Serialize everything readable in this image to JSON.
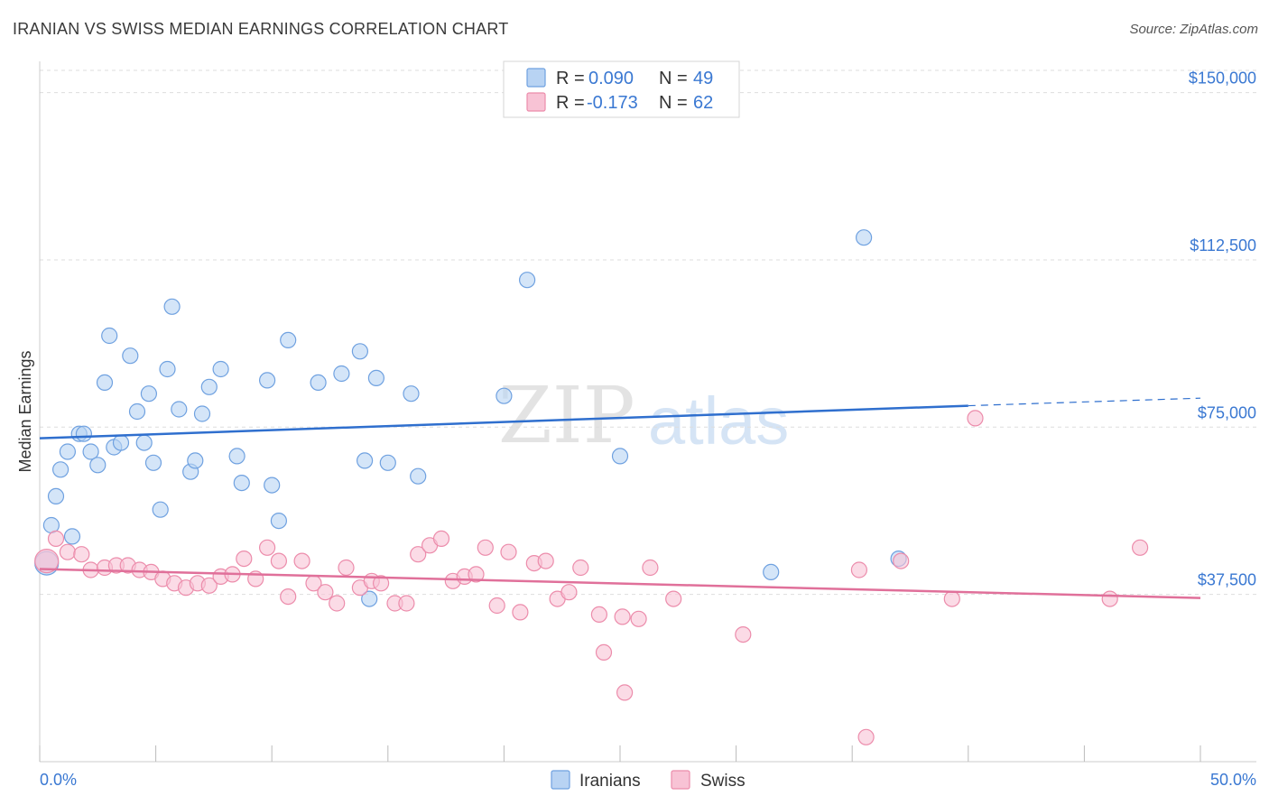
{
  "title": "IRANIAN VS SWISS MEDIAN EARNINGS CORRELATION CHART",
  "source": "Source: ZipAtlas.com",
  "colors": {
    "iranian_fill": "#b8d3f3",
    "iranian_stroke": "#6fa1e0",
    "iranian_line": "#2f6fce",
    "swiss_fill": "#f8c3d5",
    "swiss_stroke": "#ec8cab",
    "swiss_line": "#e0709a",
    "axis_label": "#3a78d2",
    "grid": "#dddddd"
  },
  "legend": {
    "rows": [
      {
        "r_label": "R = ",
        "r_value": "0.090",
        "n_label": "N = ",
        "n_value": "49"
      },
      {
        "r_label": "R = ",
        "r_value": "-0.173",
        "n_label": "N = ",
        "n_value": "62"
      }
    ]
  },
  "bottom_legend": [
    "Iranians",
    "Swiss"
  ],
  "watermark": {
    "zip": "ZIP",
    "atlas": "atlas"
  },
  "chart_data": {
    "type": "scatter",
    "title": "IRANIAN VS SWISS MEDIAN EARNINGS CORRELATION CHART",
    "xlabel": "",
    "ylabel": "Median Earnings",
    "xlim": [
      0,
      50
    ],
    "ylim": [
      0,
      157000
    ],
    "x_tick_labels": [
      "0.0%",
      "50.0%"
    ],
    "y_ticks": [
      37500,
      75000,
      112500,
      150000
    ],
    "y_tick_labels": [
      "$37,500",
      "$75,000",
      "$112,500",
      "$150,000"
    ],
    "grid": true,
    "legend_position": "top-center",
    "series": [
      {
        "name": "Iranians",
        "r": 0.09,
        "n": 49,
        "trend": {
          "x0": 0,
          "y0": 72500,
          "x1": 40,
          "y1": 79800,
          "dash_x1": 50,
          "dash_y1": 81500
        },
        "points": [
          [
            0.3,
            44500
          ],
          [
            0.5,
            53000
          ],
          [
            0.7,
            59500
          ],
          [
            0.9,
            65500
          ],
          [
            1.2,
            69500
          ],
          [
            1.4,
            50500
          ],
          [
            1.7,
            73500
          ],
          [
            1.9,
            73500
          ],
          [
            2.2,
            69500
          ],
          [
            2.5,
            66500
          ],
          [
            2.8,
            85000
          ],
          [
            3.0,
            95500
          ],
          [
            3.2,
            70500
          ],
          [
            3.5,
            71500
          ],
          [
            3.9,
            91000
          ],
          [
            4.2,
            78500
          ],
          [
            4.5,
            71500
          ],
          [
            4.7,
            82500
          ],
          [
            4.9,
            67000
          ],
          [
            5.2,
            56500
          ],
          [
            5.5,
            88000
          ],
          [
            5.7,
            102000
          ],
          [
            6.0,
            79000
          ],
          [
            6.5,
            65000
          ],
          [
            6.7,
            67500
          ],
          [
            7.0,
            78000
          ],
          [
            7.3,
            84000
          ],
          [
            7.8,
            88000
          ],
          [
            8.5,
            68500
          ],
          [
            8.7,
            62500
          ],
          [
            9.8,
            85500
          ],
          [
            10.0,
            62000
          ],
          [
            10.7,
            94500
          ],
          [
            10.3,
            54000
          ],
          [
            12.0,
            85000
          ],
          [
            13.0,
            87000
          ],
          [
            13.8,
            92000
          ],
          [
            14.0,
            67500
          ],
          [
            14.2,
            36500
          ],
          [
            14.5,
            86000
          ],
          [
            15.0,
            67000
          ],
          [
            16.0,
            82500
          ],
          [
            16.3,
            64000
          ],
          [
            20.0,
            82000
          ],
          [
            21.0,
            108000
          ],
          [
            25.0,
            68500
          ],
          [
            31.5,
            42500
          ],
          [
            35.5,
            117500
          ],
          [
            37.0,
            45500
          ]
        ]
      },
      {
        "name": "Swiss",
        "r": -0.173,
        "n": 62,
        "trend": {
          "x0": 0,
          "y0": 43200,
          "x1": 50,
          "y1": 36700
        },
        "points": [
          [
            0.3,
            45000
          ],
          [
            0.7,
            50000
          ],
          [
            1.2,
            47000
          ],
          [
            1.8,
            46500
          ],
          [
            2.2,
            43000
          ],
          [
            2.8,
            43500
          ],
          [
            3.3,
            44000
          ],
          [
            3.8,
            44000
          ],
          [
            4.3,
            43000
          ],
          [
            4.8,
            42500
          ],
          [
            5.3,
            41000
          ],
          [
            5.8,
            40000
          ],
          [
            6.3,
            39000
          ],
          [
            6.8,
            40000
          ],
          [
            7.3,
            39500
          ],
          [
            7.8,
            41500
          ],
          [
            8.3,
            42000
          ],
          [
            8.8,
            45500
          ],
          [
            9.3,
            41000
          ],
          [
            9.8,
            48000
          ],
          [
            10.3,
            45000
          ],
          [
            10.7,
            37000
          ],
          [
            11.3,
            45000
          ],
          [
            11.8,
            40000
          ],
          [
            12.3,
            38000
          ],
          [
            12.8,
            35500
          ],
          [
            13.2,
            43500
          ],
          [
            13.8,
            39000
          ],
          [
            14.3,
            40500
          ],
          [
            14.7,
            40000
          ],
          [
            15.3,
            35500
          ],
          [
            15.8,
            35500
          ],
          [
            16.3,
            46500
          ],
          [
            16.8,
            48500
          ],
          [
            17.3,
            50000
          ],
          [
            17.8,
            40500
          ],
          [
            18.3,
            41500
          ],
          [
            18.8,
            42000
          ],
          [
            19.2,
            48000
          ],
          [
            19.7,
            35000
          ],
          [
            20.2,
            47000
          ],
          [
            20.7,
            33500
          ],
          [
            21.3,
            44500
          ],
          [
            21.8,
            45000
          ],
          [
            22.3,
            36500
          ],
          [
            22.8,
            38000
          ],
          [
            23.3,
            43500
          ],
          [
            24.1,
            33000
          ],
          [
            24.3,
            24500
          ],
          [
            25.1,
            32500
          ],
          [
            25.2,
            15500
          ],
          [
            25.8,
            32000
          ],
          [
            26.3,
            43500
          ],
          [
            27.3,
            36500
          ],
          [
            30.3,
            28500
          ],
          [
            35.3,
            43000
          ],
          [
            37.1,
            45000
          ],
          [
            39.3,
            36500
          ],
          [
            40.3,
            77000
          ],
          [
            46.1,
            36500
          ],
          [
            47.4,
            48000
          ],
          [
            35.6,
            5500
          ]
        ]
      }
    ]
  }
}
